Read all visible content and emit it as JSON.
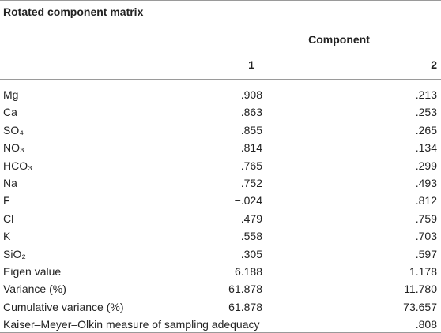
{
  "header": {
    "title": "Rotated component matrix",
    "group": "Component",
    "columns": [
      "1",
      "2"
    ]
  },
  "table": {
    "rows": [
      [
        "Mg",
        ".908",
        ".213"
      ],
      [
        "Ca",
        ".863",
        ".253"
      ],
      [
        "SO₄",
        ".855",
        ".265"
      ],
      [
        "NO₃",
        ".814",
        ".134"
      ],
      [
        "HCO₃",
        ".765",
        ".299"
      ],
      [
        "Na",
        ".752",
        ".493"
      ],
      [
        "F",
        "−.024",
        ".812"
      ],
      [
        "Cl",
        ".479",
        ".759"
      ],
      [
        "K",
        ".558",
        ".703"
      ],
      [
        "SiO₂",
        ".305",
        ".597"
      ],
      [
        "Eigen value",
        "6.188",
        "1.178"
      ],
      [
        "Variance (%)",
        "61.878",
        "11.780"
      ],
      [
        "Cumulative variance (%)",
        "61.878",
        "73.657"
      ],
      [
        "Kaiser–Meyer–Olkin measure of sampling adequacy",
        ".808"
      ]
    ]
  }
}
